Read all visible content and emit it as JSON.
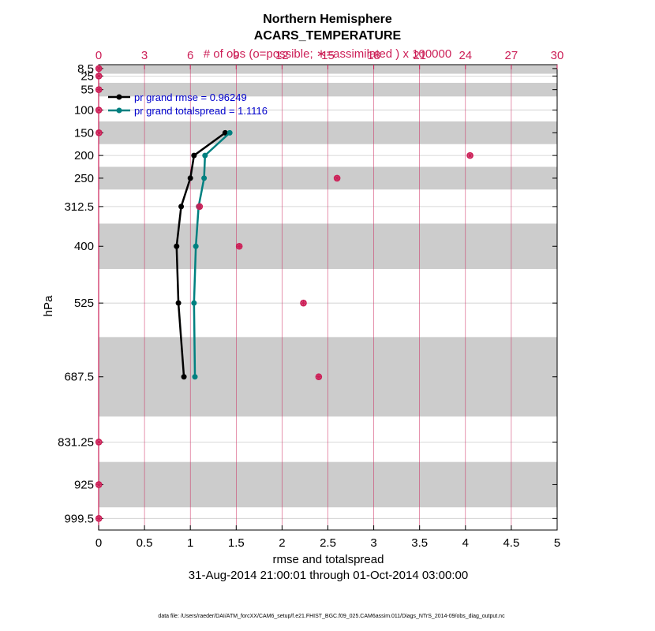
{
  "chart_data": {
    "type": "line",
    "title_lines": [
      "Northern Hemisphere",
      "ACARS_TEMPERATURE"
    ],
    "top_axis_label": "# of obs (o=possible; ∗=assimilated ) x 100000",
    "xlabel": "rmse and totalspread",
    "ylabel": "hPa",
    "date_range": "31-Aug-2014 21:00:01 through 01-Oct-2014 03:00:00",
    "footer": "data file: /Users/raeder/DAI/ATM_forcXX/CAM6_setup/f.e21.FHIST_BGC.f09_025.CAM6assim.011/Diags_NTrS_2014-09/obs_diag_output.nc",
    "xlim": [
      0,
      5
    ],
    "x_ticks": [
      0,
      0.5,
      1,
      1.5,
      2,
      2.5,
      3,
      3.5,
      4,
      4.5,
      5
    ],
    "x_tick_labels": [
      "0",
      "0.5",
      "1",
      "1.5",
      "2",
      "2.5",
      "3",
      "3.5",
      "4",
      "4.5",
      "5"
    ],
    "top_xlim": [
      0,
      30
    ],
    "top_ticks": [
      0,
      3,
      6,
      9,
      12,
      15,
      18,
      21,
      24,
      27,
      30
    ],
    "top_tick_labels": [
      "0",
      "3",
      "6",
      "9",
      "12",
      "15",
      "18",
      "21",
      "24",
      "27",
      "30"
    ],
    "levels": [
      8.5,
      25,
      55,
      100,
      150,
      200,
      250,
      312.5,
      400,
      525,
      687.5,
      831.25,
      925,
      999.5
    ],
    "level_labels": [
      "8.5",
      "25",
      "55",
      "100",
      "150",
      "200",
      "250",
      "312.5",
      "400",
      "525",
      "687.5",
      "831.25",
      "925",
      "999.5"
    ],
    "shaded_layers": [
      [
        1,
        20
      ],
      [
        40,
        70
      ],
      [
        125,
        175
      ],
      [
        225,
        275
      ],
      [
        350,
        450
      ],
      [
        600,
        775
      ],
      [
        875,
        975
      ]
    ],
    "series": [
      {
        "name": "rmse",
        "legend": "pr grand rmse = 0.96249",
        "color": "#000000",
        "levels": [
          150,
          200,
          250,
          312.5,
          400,
          525,
          687.5
        ],
        "values": [
          1.38,
          1.04,
          1.0,
          0.9,
          0.85,
          0.87,
          0.93
        ]
      },
      {
        "name": "totalspread",
        "legend": "pr grand totalspread = 1.1116",
        "color": "#008080",
        "levels": [
          150,
          200,
          250,
          312.5,
          400,
          525,
          687.5
        ],
        "values": [
          1.43,
          1.16,
          1.15,
          1.09,
          1.06,
          1.04,
          1.05
        ]
      }
    ],
    "obs_series": {
      "name": "# of obs",
      "color": "#cc1f57",
      "levels": [
        8.5,
        25,
        55,
        100,
        150,
        200,
        250,
        312.5,
        400,
        525,
        687.5,
        831.25,
        925,
        999.5
      ],
      "possible": [
        0.01,
        0.01,
        0.01,
        0.01,
        0.02,
        24.3,
        15.6,
        6.6,
        9.2,
        13.4,
        14.4,
        0.01,
        0.01,
        0.01
      ],
      "assimilated": [
        0.01,
        0.01,
        0.01,
        0.01,
        0.02,
        24.3,
        15.6,
        6.6,
        9.2,
        13.4,
        14.4,
        0.01,
        0.01,
        0.01
      ]
    },
    "colors": {
      "top_axis": "#cc1f57",
      "grid_vertical": "#cc1f57",
      "grid_horizontal": "#cccccc",
      "shade": "#cccccc"
    }
  }
}
